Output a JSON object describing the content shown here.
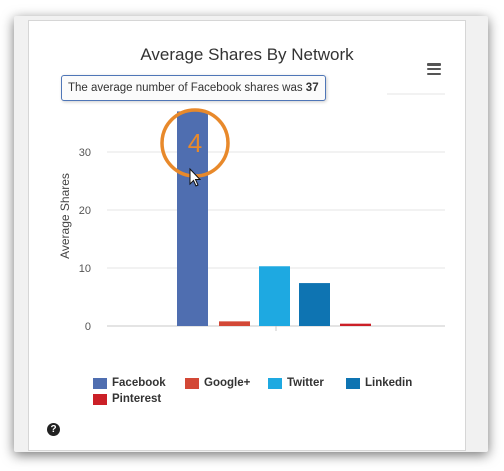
{
  "chart_data": {
    "type": "bar",
    "title": "Average Shares By Network",
    "ylabel": "Average Shares",
    "xlabel": "",
    "ylim": [
      0,
      40
    ],
    "yticks": [
      "0",
      "10",
      "20",
      "30"
    ],
    "grid": true,
    "legend_position": "bottom",
    "categories": [
      "Facebook",
      "Google+",
      "Twitter",
      "Linkedin",
      "Pinterest"
    ],
    "values": [
      37,
      0.8,
      10.3,
      7.4,
      0.4
    ],
    "colors": [
      "#4f6eb0",
      "#d34836",
      "#1ea9e1",
      "#0e74b2",
      "#cb2027"
    ]
  },
  "tooltip": {
    "prefix": "The average number of Facebook shares was ",
    "value": "37"
  },
  "annotation": {
    "step_number": "4",
    "color": "#e8892b"
  },
  "icons": {
    "menu": "hamburger-menu-icon",
    "help": "question-circle-icon",
    "help_glyph": "?"
  }
}
